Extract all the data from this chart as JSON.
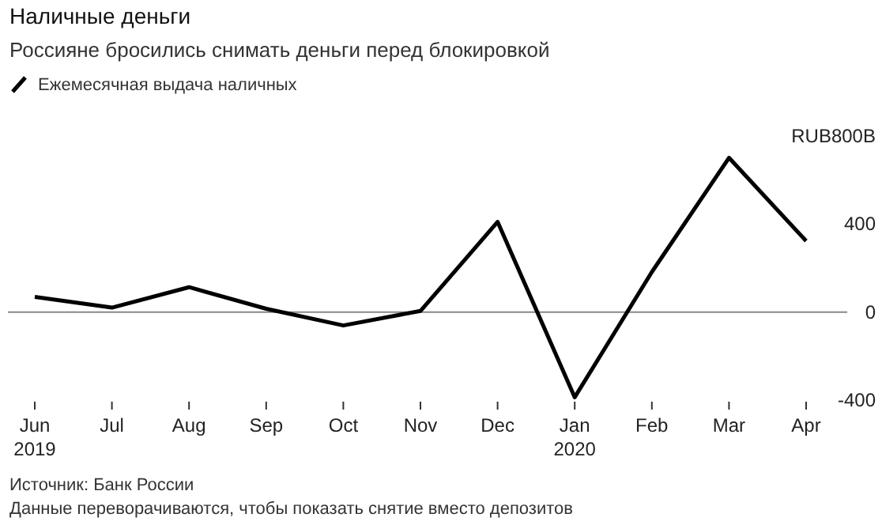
{
  "chart_data": {
    "type": "line",
    "title": "Наличные деньги",
    "subtitle": "Россияне бросились снимать деньги перед блокировкой",
    "categories": [
      "Jun\n2019",
      "Jul",
      "Aug",
      "Sep",
      "Oct",
      "Nov",
      "Dec",
      "Jan\n2020",
      "Feb",
      "Mar",
      "Apr"
    ],
    "series": [
      {
        "name": "Ежемесячная выдача наличных",
        "color": "#000000",
        "values": [
          69,
          20,
          113,
          15,
          -61,
          5,
          410,
          -387,
          182,
          701,
          323
        ]
      }
    ],
    "ylim": [
      -400,
      800
    ],
    "yticks": [
      -400,
      0,
      400,
      {
        "value": 800,
        "label": "RUB800B"
      }
    ],
    "ref_lines": [
      {
        "axis": "y",
        "value": 0,
        "color": "#888888"
      }
    ],
    "grid": false,
    "legend": "top left",
    "marker": "none",
    "line_style": "solid",
    "annotations": [
      "Источник: Банк России",
      "Данные переворачиваются, чтобы показать снятие вместо депозитов"
    ]
  }
}
